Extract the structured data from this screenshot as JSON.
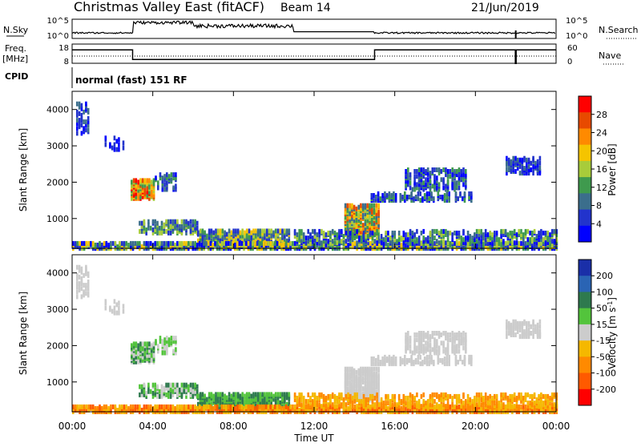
{
  "header": {
    "title": "Christmas Valley East (fitACF)",
    "beam": "Beam 14",
    "date": "21/Jun/2019"
  },
  "strip1": {
    "left_label": "N.Sky",
    "right_label": "N.Search",
    "left_ticks": [
      "10^5",
      "10^0"
    ],
    "right_ticks": [
      "10^5",
      "10^0"
    ]
  },
  "strip2": {
    "left_label": "Freq.",
    "left_unit": "[MHz]",
    "right_label": "Nave",
    "left_ticks": [
      "18",
      "8"
    ],
    "right_ticks": [
      "60",
      "0"
    ]
  },
  "cpid": {
    "label": "CPID",
    "text": "normal (fast) 151 RF"
  },
  "chart_data": [
    {
      "type": "heatmap",
      "name": "power",
      "ylabel": "Slant Range [km]",
      "yticks": [
        "4000",
        "3000",
        "2000",
        "1000"
      ],
      "colorbar_label": "Power [dB]",
      "colorbar_ticks": [
        "28",
        "24",
        "20",
        "16",
        "12",
        "8",
        "4"
      ],
      "colors": [
        "#ff0000",
        "#e84a00",
        "#ff8a00",
        "#f5c400",
        "#a8cc3a",
        "#3f9a4e",
        "#3b6e8c",
        "#2233cc",
        "#0000ff"
      ],
      "x_range_hours": [
        0,
        24
      ],
      "y_range_km": [
        180,
        4500
      ]
    },
    {
      "type": "heatmap",
      "name": "velocity",
      "ylabel": "Slant Range [km]",
      "yticks": [
        "4000",
        "3000",
        "2000",
        "1000"
      ],
      "colorbar_label": "Velocity [m s^-1]",
      "colorbar_ticks": [
        "200",
        "100",
        "50",
        "15",
        "-15",
        "-50",
        "-100",
        "-200"
      ],
      "colors": [
        "#1a2fa8",
        "#2a64b4",
        "#2e7a4e",
        "#53c43c",
        "#cccccc",
        "#f5b800",
        "#ff8a00",
        "#ff5a00",
        "#ff0000"
      ],
      "x_range_hours": [
        0,
        24
      ],
      "y_range_km": [
        180,
        4500
      ]
    }
  ],
  "xaxis": {
    "label": "Time UT",
    "ticks": [
      "00:00",
      "04:00",
      "08:00",
      "12:00",
      "16:00",
      "20:00",
      "00:00"
    ]
  }
}
